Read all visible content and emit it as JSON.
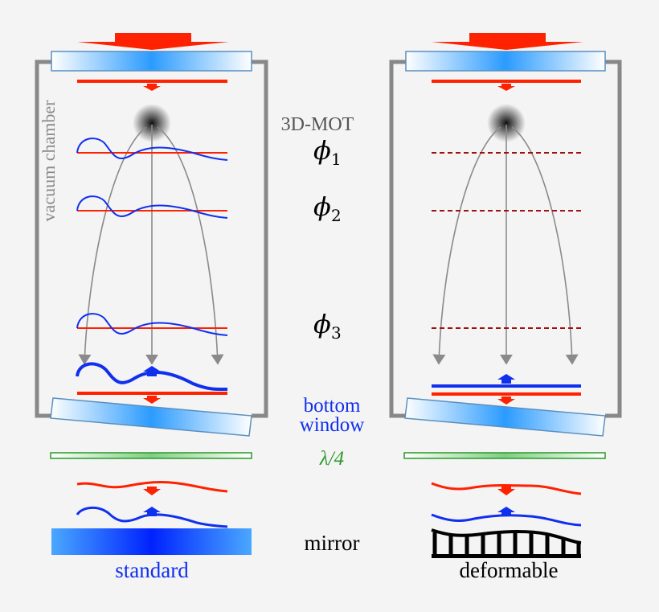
{
  "labels": {
    "mot": "3D-MOT",
    "phi1": "ϕ",
    "phi1_sub": "1",
    "phi2": "ϕ",
    "phi2_sub": "2",
    "phi3": "ϕ",
    "phi3_sub": "3",
    "bottom_window_1": "bottom",
    "bottom_window_2": "window",
    "quarter_wave": "λ/4",
    "mirror": "mirror",
    "vacuum_chamber": "vacuum chamber",
    "standard": "standard",
    "deformable": "deformable"
  },
  "colors": {
    "laser_down": "#ff2200",
    "laser_up": "#1030ee",
    "chamber": "#888888",
    "window": "#2b9bff",
    "waveplate": "#2a9a2a",
    "phase_dashed": "#a01010",
    "trajectory": "#8a8a8a"
  }
}
